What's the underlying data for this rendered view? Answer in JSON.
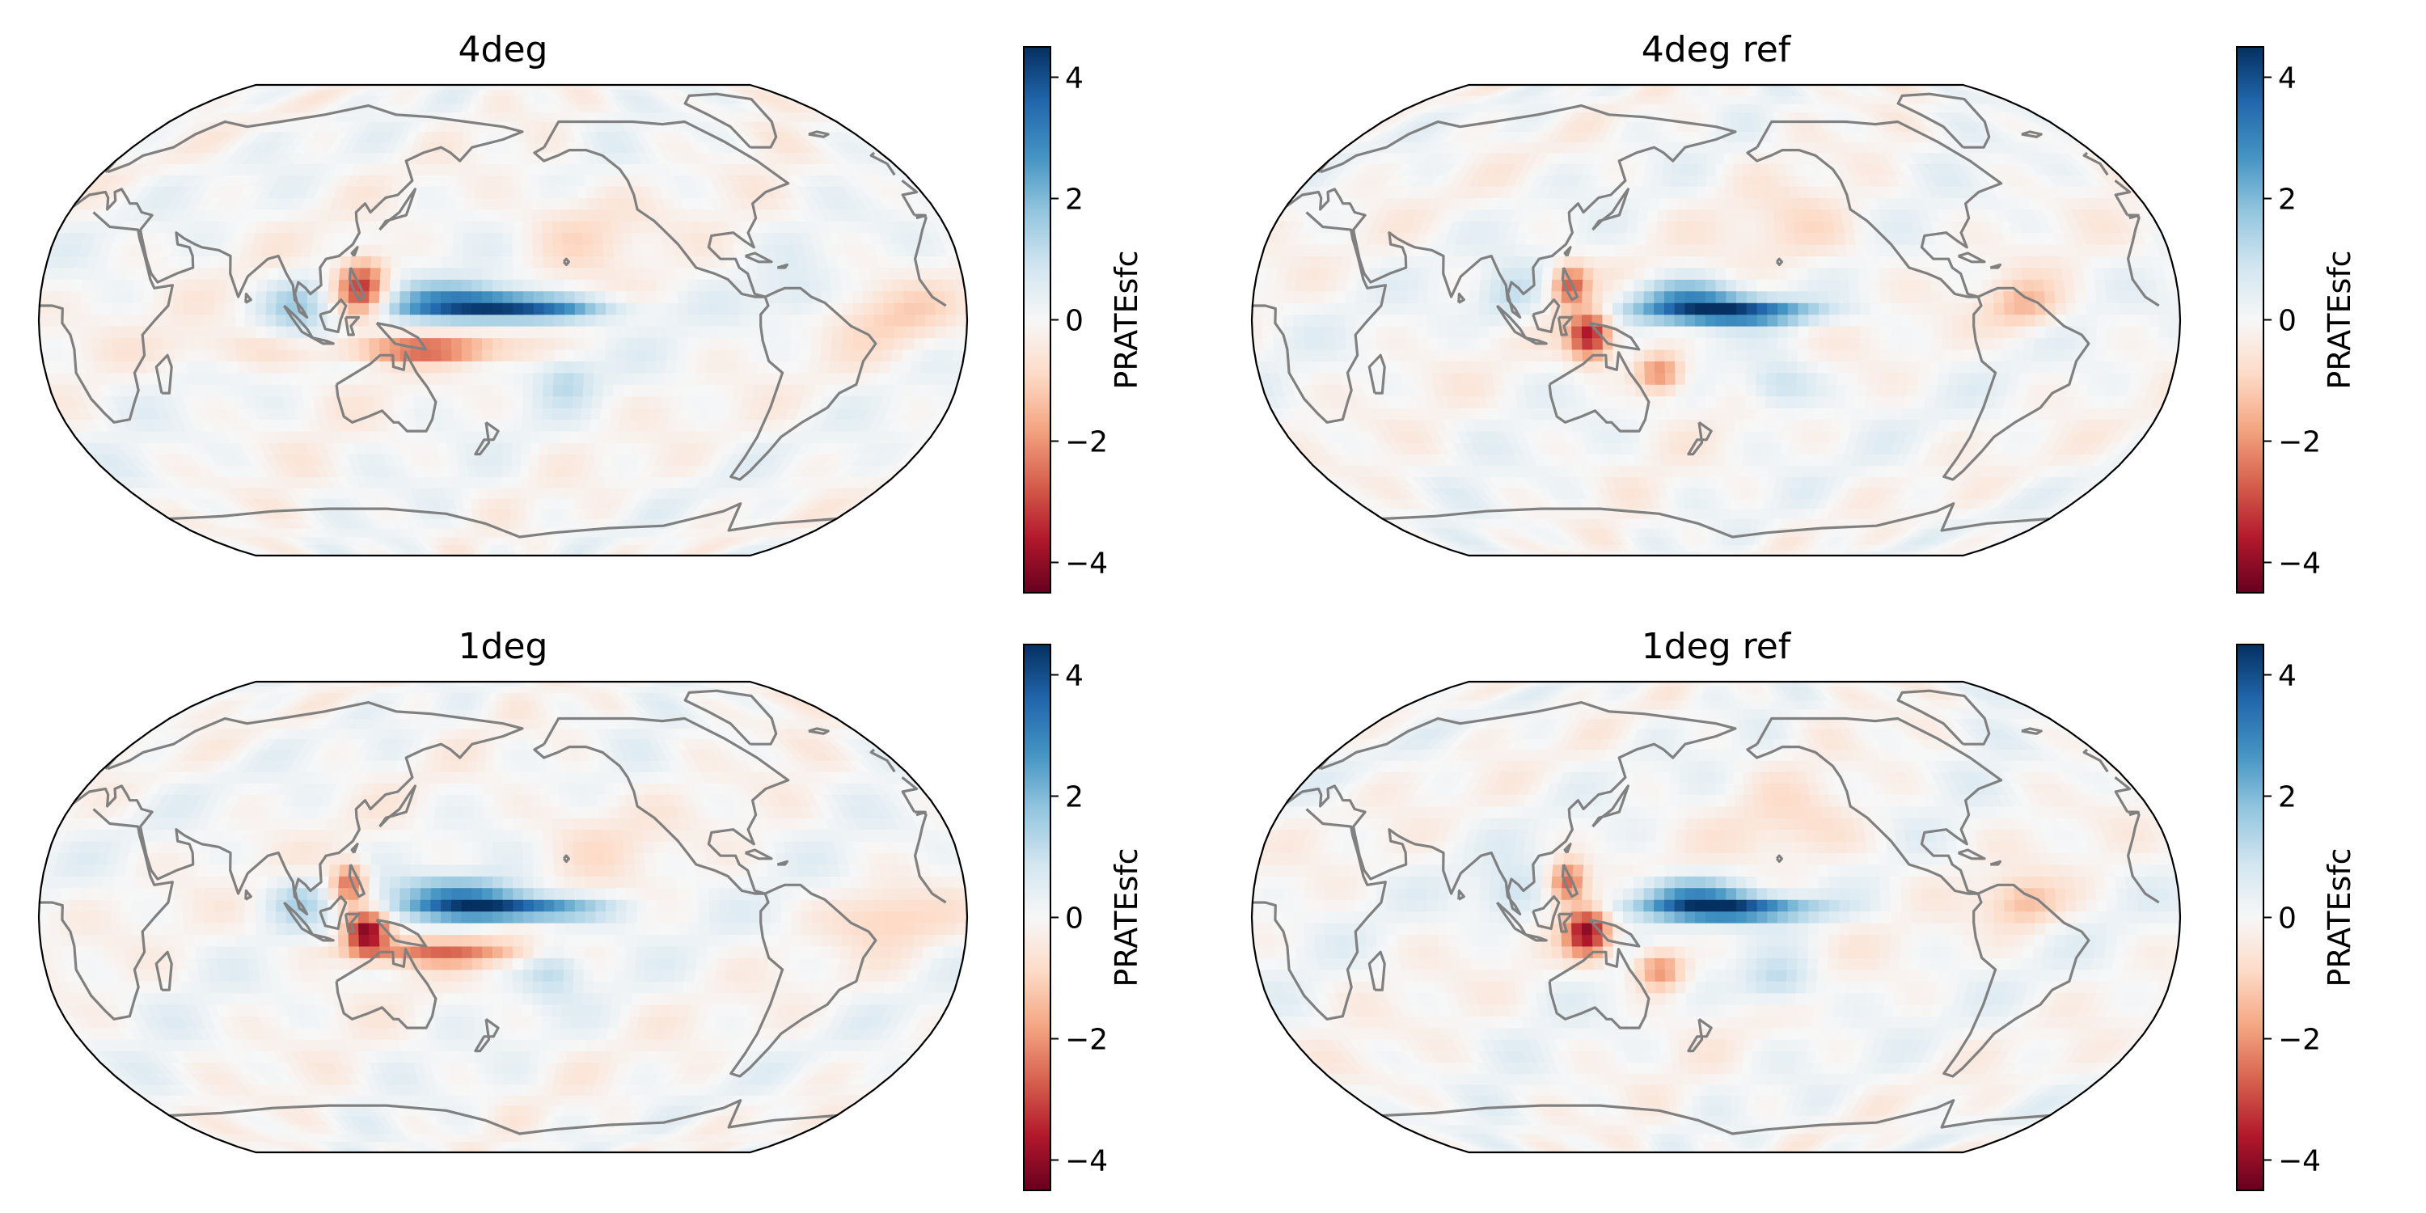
{
  "figure": {
    "panels": [
      {
        "id": "4deg",
        "title": "4deg",
        "colorbar": {
          "label": "PRATEsfc",
          "ticks": [
            "4",
            "2",
            "0",
            "−2",
            "−4"
          ],
          "tick_values": [
            4,
            2,
            0,
            -2,
            -4
          ],
          "range": [
            -4.5,
            4.5
          ],
          "colormap": "RdBu"
        },
        "anomalies": [
          {
            "lon": 180,
            "lat": 4,
            "amp": 4.2,
            "sx": 26,
            "sy": 3
          },
          {
            "lon": 165,
            "lat": 9,
            "amp": 1.8,
            "sx": 18,
            "sy": 4
          },
          {
            "lon": 125,
            "lat": 11,
            "amp": -3.4,
            "sx": 7,
            "sy": 7
          },
          {
            "lon": 150,
            "lat": -10,
            "amp": -2.4,
            "sx": 24,
            "sy": 3
          },
          {
            "lon": 100,
            "lat": 5,
            "amp": 1.3,
            "sx": 9,
            "sy": 7
          },
          {
            "lon": 205,
            "lat": -20,
            "amp": 1.0,
            "sx": 8,
            "sy": 6
          },
          {
            "lon": 210,
            "lat": 33,
            "amp": -0.8,
            "sx": 18,
            "sy": 10
          },
          {
            "lon": 330,
            "lat": 2,
            "amp": -0.9,
            "sx": 16,
            "sy": 8
          },
          {
            "lon": 295,
            "lat": 8,
            "amp": 0.7,
            "sx": 10,
            "sy": 6
          },
          {
            "lon": 75,
            "lat": -10,
            "amp": -0.7,
            "sx": 22,
            "sy": 5
          }
        ]
      },
      {
        "id": "4deg-ref",
        "title": "4deg ref",
        "colorbar": {
          "label": "PRATEsfc",
          "ticks": [
            "4",
            "2",
            "0",
            "−2",
            "−4"
          ],
          "tick_values": [
            4,
            2,
            0,
            -2,
            -4
          ],
          "range": [
            -4.5,
            4.5
          ],
          "colormap": "RdBu"
        },
        "anomalies": [
          {
            "lon": 183,
            "lat": 3,
            "amp": 4.1,
            "sx": 24,
            "sy": 3
          },
          {
            "lon": 168,
            "lat": 9,
            "amp": 2.0,
            "sx": 15,
            "sy": 4
          },
          {
            "lon": 131,
            "lat": -5,
            "amp": -3.8,
            "sx": 6,
            "sy": 6
          },
          {
            "lon": 123,
            "lat": 12,
            "amp": -2.7,
            "sx": 5,
            "sy": 5
          },
          {
            "lon": 158,
            "lat": -18,
            "amp": -2.4,
            "sx": 7,
            "sy": 5
          },
          {
            "lon": 205,
            "lat": -22,
            "amp": 1.3,
            "sx": 10,
            "sy": 6
          },
          {
            "lon": 100,
            "lat": 8,
            "amp": 1.0,
            "sx": 9,
            "sy": 7
          },
          {
            "lon": 300,
            "lat": 5,
            "amp": -1.4,
            "sx": 10,
            "sy": 6
          },
          {
            "lon": 215,
            "lat": 30,
            "amp": -0.7,
            "sx": 18,
            "sy": 10
          }
        ]
      },
      {
        "id": "1deg",
        "title": "1deg",
        "colorbar": {
          "label": "PRATEsfc",
          "ticks": [
            "4",
            "2",
            "0",
            "−2",
            "−4"
          ],
          "tick_values": [
            4,
            2,
            0,
            -2,
            -4
          ],
          "range": [
            -4.5,
            4.5
          ],
          "colormap": "RdBu"
        },
        "anomalies": [
          {
            "lon": 180,
            "lat": 3,
            "amp": 4.3,
            "sx": 24,
            "sy": 3
          },
          {
            "lon": 163,
            "lat": 9,
            "amp": 2.0,
            "sx": 18,
            "sy": 4
          },
          {
            "lon": 127,
            "lat": -5,
            "amp": -4.2,
            "sx": 6,
            "sy": 5
          },
          {
            "lon": 120,
            "lat": 11,
            "amp": -2.8,
            "sx": 5,
            "sy": 5
          },
          {
            "lon": 155,
            "lat": -12,
            "amp": -2.2,
            "sx": 26,
            "sy": 3
          },
          {
            "lon": 200,
            "lat": -18,
            "amp": 1.0,
            "sx": 8,
            "sy": 7
          },
          {
            "lon": 100,
            "lat": 6,
            "amp": 1.1,
            "sx": 9,
            "sy": 6
          },
          {
            "lon": 330,
            "lat": 0,
            "amp": -1.0,
            "sx": 14,
            "sy": 7
          },
          {
            "lon": 215,
            "lat": 30,
            "amp": -0.6,
            "sx": 18,
            "sy": 10
          }
        ]
      },
      {
        "id": "1deg-ref",
        "title": "1deg ref",
        "colorbar": {
          "label": "PRATEsfc",
          "ticks": [
            "4",
            "2",
            "0",
            "−2",
            "−4"
          ],
          "tick_values": [
            4,
            2,
            0,
            -2,
            -4
          ],
          "range": [
            -4.5,
            4.5
          ],
          "colormap": "RdBu"
        },
        "anomalies": [
          {
            "lon": 183,
            "lat": 3,
            "amp": 4.1,
            "sx": 24,
            "sy": 3
          },
          {
            "lon": 167,
            "lat": 9,
            "amp": 2.0,
            "sx": 15,
            "sy": 4
          },
          {
            "lon": 130,
            "lat": -5,
            "amp": -3.8,
            "sx": 6,
            "sy": 6
          },
          {
            "lon": 122,
            "lat": 12,
            "amp": -2.8,
            "sx": 5,
            "sy": 5
          },
          {
            "lon": 158,
            "lat": -18,
            "amp": -2.3,
            "sx": 7,
            "sy": 5
          },
          {
            "lon": 205,
            "lat": -22,
            "amp": 1.4,
            "sx": 10,
            "sy": 6
          },
          {
            "lon": 100,
            "lat": 8,
            "amp": 1.0,
            "sx": 9,
            "sy": 7
          },
          {
            "lon": 300,
            "lat": 5,
            "amp": -1.4,
            "sx": 10,
            "sy": 6
          },
          {
            "lon": 215,
            "lat": 30,
            "amp": -0.7,
            "sx": 18,
            "sy": 10
          }
        ]
      }
    ],
    "projection": "robinson",
    "central_longitude": 180,
    "coastline_color": "#808080",
    "colors": {
      "colormap_stops": [
        "#67001f",
        "#b2182b",
        "#d6604d",
        "#f4a582",
        "#fddbc7",
        "#f7f7f7",
        "#d1e5f0",
        "#92c5de",
        "#4393c3",
        "#2166ac",
        "#053061"
      ],
      "frame": "#000000",
      "text": "#000000"
    }
  }
}
